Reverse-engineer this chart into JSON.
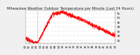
{
  "title": "Milwaukee Weather Outdoor Temperature per Minute (Last 24 Hours)",
  "background_color": "#f0f0f0",
  "plot_bg_color": "#ffffff",
  "line_color": "#ff0000",
  "grid_color": "#cccccc",
  "vline_color": "#999999",
  "vline_x": 0.135,
  "ylim": [
    22,
    58
  ],
  "yticks": [
    25,
    30,
    35,
    40,
    45,
    50,
    55
  ],
  "ytick_labels": [
    "25",
    "30",
    "35",
    "40",
    "45",
    "50",
    "55"
  ],
  "title_fontsize": 3.8,
  "tick_fontsize": 2.8,
  "num_points": 1440,
  "noise_scale": 1.2
}
